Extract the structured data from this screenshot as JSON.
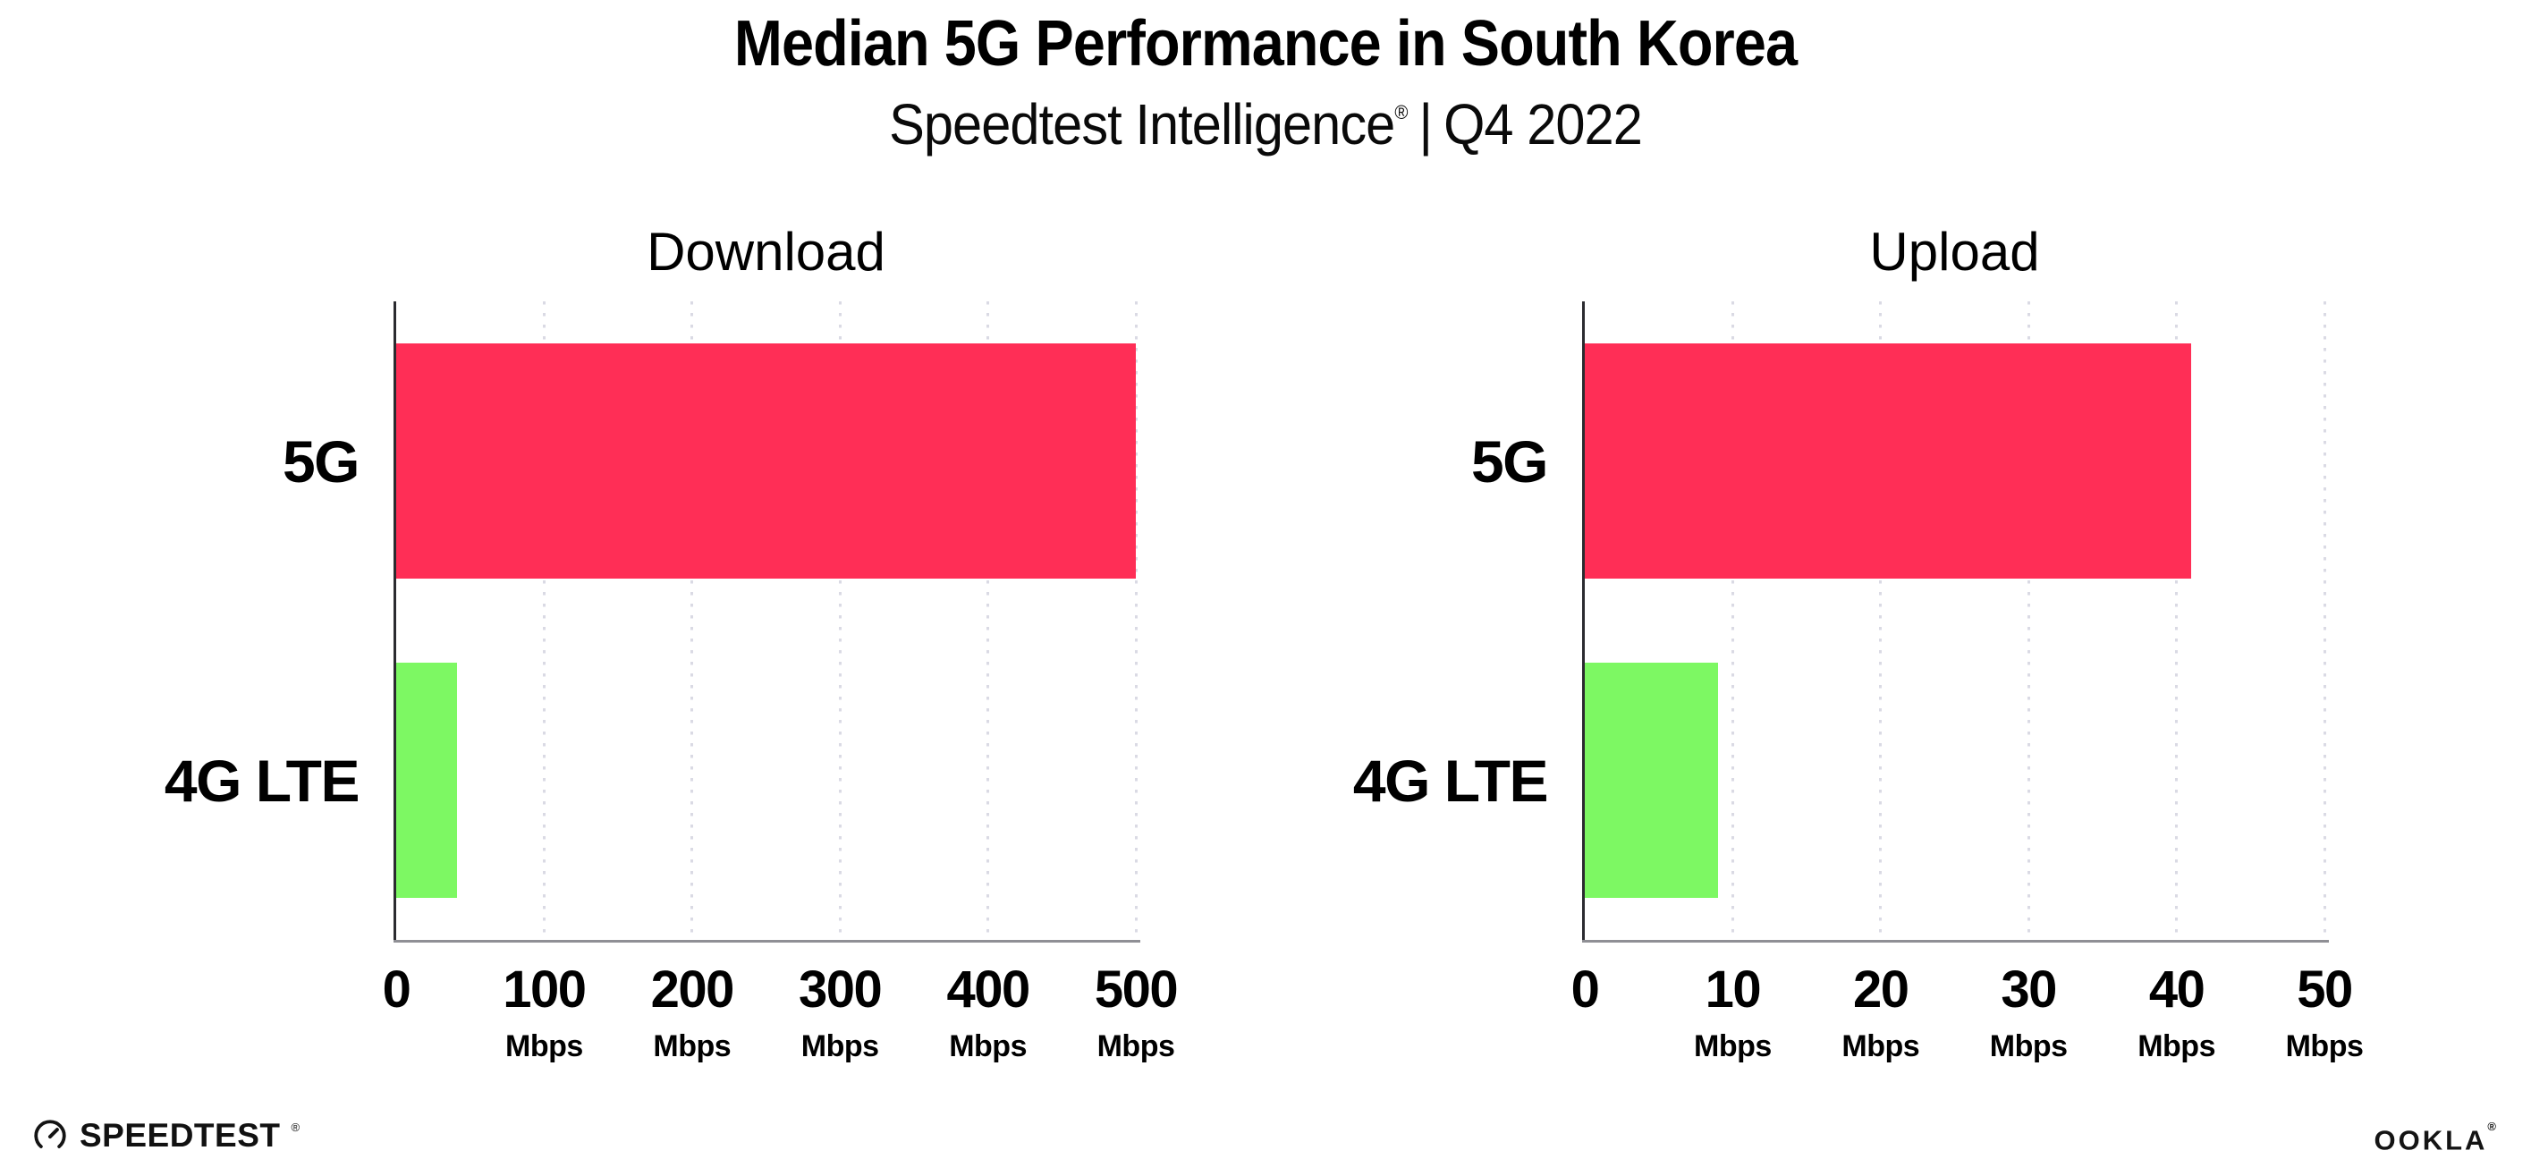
{
  "header": {
    "title": "Median 5G Performance in South Korea",
    "subtitle_product": "Speedtest Intelligence",
    "subtitle_reg": "®",
    "subtitle_separator": "|",
    "subtitle_period": "Q4 2022"
  },
  "colors": {
    "bar_5g_pink": "#FF2E56",
    "bar_4g_green": "#7DF863",
    "gridline": "#dadae4",
    "y_axis": "#2b2b30",
    "x_axis": "#8f8f95",
    "text": "#000000"
  },
  "chart_data": [
    {
      "type": "bar",
      "orientation": "horizontal",
      "title": "Download",
      "categories": [
        "5G",
        "4G LTE"
      ],
      "values": [
        500,
        41
      ],
      "unit": "Mbps",
      "xlim": [
        0,
        500
      ],
      "xticks": [
        0,
        100,
        200,
        300,
        400,
        500
      ],
      "tick_unit_label": "Mbps",
      "bar_colors": [
        "#FF2E56",
        "#7DF863"
      ],
      "grid": "vertical-dotted",
      "legend": "none"
    },
    {
      "type": "bar",
      "orientation": "horizontal",
      "title": "Upload",
      "categories": [
        "5G",
        "4G LTE"
      ],
      "values": [
        41,
        9
      ],
      "unit": "Mbps",
      "xlim": [
        0,
        50
      ],
      "xticks": [
        0,
        10,
        20,
        30,
        40,
        50
      ],
      "tick_unit_label": "Mbps",
      "bar_colors": [
        "#FF2E56",
        "#7DF863"
      ],
      "grid": "vertical-dotted",
      "legend": "none"
    }
  ],
  "footer": {
    "speedtest_wordmark": "SPEEDTEST",
    "speedtest_reg": "®",
    "speedtest_icon": "gauge-icon",
    "ookla_wordmark": "OOKLA",
    "ookla_reg": "®"
  }
}
